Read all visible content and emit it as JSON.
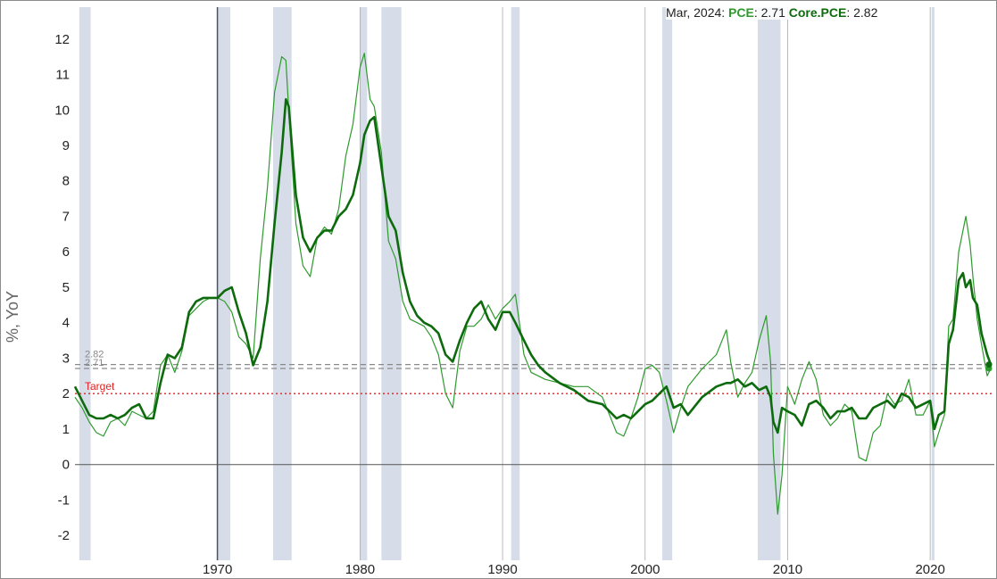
{
  "legend": {
    "date": "Mar, 2024",
    "pce_label": "PCE",
    "pce_value": "2.71",
    "core_label": "Core.PCE",
    "core_value": "2.82"
  },
  "target_label": "Target",
  "ref_label_top": "2.82",
  "ref_label_bottom": "2.71",
  "colors": {
    "pce": "#2e9a2e",
    "core": "#0d6b0d",
    "recession": "#d6dde8",
    "target": "#e02020",
    "ref_line": "#8a8a8a",
    "zero_line": "#555555"
  },
  "chart_data": {
    "type": "line",
    "title": "",
    "xlabel": "",
    "ylabel": "%, YoY",
    "xlim": [
      1960.0,
      2024.5
    ],
    "ylim": [
      -2.7,
      12.9
    ],
    "yticks": [
      -2,
      -1,
      0,
      1,
      2,
      3,
      4,
      5,
      6,
      7,
      8,
      9,
      10,
      11,
      12
    ],
    "xticks": [
      1970,
      1980,
      1990,
      2000,
      2010,
      2020
    ],
    "grid": "vertical decade lines",
    "target": 2,
    "reference_lines": [
      2.82,
      2.71
    ],
    "recessions": [
      [
        1960.3,
        1961.1
      ],
      [
        1969.9,
        1970.9
      ],
      [
        1973.9,
        1975.2
      ],
      [
        1980.0,
        1980.5
      ],
      [
        1981.5,
        1982.9
      ],
      [
        1990.6,
        1991.2
      ],
      [
        2001.2,
        2001.9
      ],
      [
        2007.9,
        2009.5
      ],
      [
        2020.1,
        2020.3
      ]
    ],
    "series": [
      {
        "name": "PCE",
        "x": [
          1960.0,
          1960.5,
          1961.0,
          1961.5,
          1962.0,
          1962.5,
          1963.0,
          1963.5,
          1964.0,
          1964.5,
          1965.0,
          1965.5,
          1966.0,
          1966.5,
          1967.0,
          1967.5,
          1968.0,
          1968.5,
          1969.0,
          1969.5,
          1970.0,
          1970.5,
          1971.0,
          1971.5,
          1972.0,
          1972.5,
          1973.0,
          1973.5,
          1974.0,
          1974.5,
          1974.8,
          1975.0,
          1975.5,
          1976.0,
          1976.5,
          1977.0,
          1977.5,
          1978.0,
          1978.5,
          1979.0,
          1979.5,
          1980.0,
          1980.3,
          1980.7,
          1981.0,
          1981.5,
          1982.0,
          1982.5,
          1983.0,
          1983.5,
          1984.0,
          1984.5,
          1985.0,
          1985.5,
          1986.0,
          1986.5,
          1987.0,
          1987.5,
          1988.0,
          1988.5,
          1989.0,
          1989.5,
          1990.0,
          1990.5,
          1990.9,
          1991.5,
          1992.0,
          1992.5,
          1993.0,
          1994.0,
          1995.0,
          1996.0,
          1997.0,
          1998.0,
          1998.5,
          1999.0,
          1999.5,
          2000.0,
          2000.5,
          2001.0,
          2001.5,
          2002.0,
          2002.5,
          2003.0,
          2004.0,
          2005.0,
          2005.7,
          2006.0,
          2006.5,
          2007.0,
          2007.5,
          2008.0,
          2008.5,
          2008.8,
          2009.0,
          2009.3,
          2009.6,
          2010.0,
          2010.5,
          2011.0,
          2011.5,
          2012.0,
          2012.5,
          2013.0,
          2013.5,
          2014.0,
          2014.5,
          2015.0,
          2015.5,
          2016.0,
          2016.5,
          2017.0,
          2017.5,
          2018.0,
          2018.5,
          2019.0,
          2019.5,
          2020.0,
          2020.3,
          2020.6,
          2021.0,
          2021.3,
          2021.6,
          2022.0,
          2022.3,
          2022.5,
          2022.8,
          2023.0,
          2023.3,
          2023.6,
          2024.0,
          2024.25
        ],
        "values": [
          1.9,
          1.6,
          1.2,
          0.9,
          0.8,
          1.2,
          1.3,
          1.1,
          1.5,
          1.4,
          1.3,
          1.5,
          2.8,
          3.1,
          2.6,
          3.2,
          4.2,
          4.4,
          4.6,
          4.7,
          4.7,
          4.6,
          4.3,
          3.6,
          3.4,
          3.0,
          5.8,
          7.8,
          10.5,
          11.5,
          11.4,
          10.0,
          6.8,
          5.6,
          5.3,
          6.4,
          6.7,
          6.5,
          7.2,
          8.7,
          9.6,
          11.2,
          11.6,
          10.3,
          10.1,
          8.8,
          6.3,
          5.8,
          4.6,
          4.1,
          4.0,
          3.9,
          3.6,
          3.1,
          2.0,
          1.6,
          3.2,
          3.9,
          3.9,
          4.1,
          4.5,
          4.1,
          4.4,
          4.6,
          4.8,
          3.1,
          2.6,
          2.5,
          2.4,
          2.3,
          2.2,
          2.2,
          1.9,
          0.9,
          0.8,
          1.3,
          1.9,
          2.7,
          2.8,
          2.6,
          1.8,
          0.9,
          1.6,
          2.2,
          2.7,
          3.1,
          3.8,
          2.9,
          1.9,
          2.3,
          2.6,
          3.5,
          4.2,
          2.9,
          0.3,
          -1.4,
          -0.3,
          2.2,
          1.7,
          2.4,
          2.9,
          2.4,
          1.4,
          1.1,
          1.3,
          1.7,
          1.5,
          0.2,
          0.1,
          0.9,
          1.1,
          2.0,
          1.7,
          1.8,
          2.4,
          1.4,
          1.4,
          1.8,
          0.5,
          0.9,
          1.4,
          3.9,
          4.1,
          6.0,
          6.6,
          7.0,
          6.2,
          5.3,
          4.1,
          3.4,
          2.5,
          2.71
        ]
      },
      {
        "name": "Core.PCE",
        "x": [
          1960.0,
          1960.5,
          1961.0,
          1961.5,
          1962.0,
          1962.5,
          1963.0,
          1963.5,
          1964.0,
          1964.5,
          1965.0,
          1965.5,
          1966.0,
          1966.5,
          1967.0,
          1967.5,
          1968.0,
          1968.5,
          1969.0,
          1969.5,
          1970.0,
          1970.5,
          1971.0,
          1971.5,
          1972.0,
          1972.5,
          1973.0,
          1973.5,
          1974.0,
          1974.5,
          1974.8,
          1975.0,
          1975.5,
          1976.0,
          1976.5,
          1977.0,
          1977.5,
          1978.0,
          1978.5,
          1979.0,
          1979.5,
          1980.0,
          1980.3,
          1980.7,
          1981.0,
          1981.5,
          1982.0,
          1982.5,
          1983.0,
          1983.5,
          1984.0,
          1984.5,
          1985.0,
          1985.5,
          1986.0,
          1986.5,
          1987.0,
          1987.5,
          1988.0,
          1988.5,
          1989.0,
          1989.5,
          1990.0,
          1990.5,
          1990.9,
          1991.5,
          1992.0,
          1992.5,
          1993.0,
          1994.0,
          1995.0,
          1996.0,
          1997.0,
          1998.0,
          1998.5,
          1999.0,
          1999.5,
          2000.0,
          2000.5,
          2001.0,
          2001.5,
          2002.0,
          2002.5,
          2003.0,
          2004.0,
          2005.0,
          2005.7,
          2006.0,
          2006.5,
          2007.0,
          2007.5,
          2008.0,
          2008.5,
          2008.8,
          2009.0,
          2009.3,
          2009.6,
          2010.0,
          2010.5,
          2011.0,
          2011.5,
          2012.0,
          2012.5,
          2013.0,
          2013.5,
          2014.0,
          2014.5,
          2015.0,
          2015.5,
          2016.0,
          2016.5,
          2017.0,
          2017.5,
          2018.0,
          2018.5,
          2019.0,
          2019.5,
          2020.0,
          2020.3,
          2020.6,
          2021.0,
          2021.3,
          2021.6,
          2022.0,
          2022.3,
          2022.5,
          2022.8,
          2023.0,
          2023.3,
          2023.6,
          2024.0,
          2024.25
        ],
        "values": [
          2.2,
          1.8,
          1.4,
          1.3,
          1.3,
          1.4,
          1.3,
          1.4,
          1.6,
          1.7,
          1.3,
          1.3,
          2.3,
          3.1,
          3.0,
          3.3,
          4.3,
          4.6,
          4.7,
          4.7,
          4.7,
          4.9,
          5.0,
          4.3,
          3.7,
          2.8,
          3.3,
          4.6,
          6.8,
          8.8,
          10.3,
          10.1,
          7.6,
          6.4,
          6.0,
          6.4,
          6.6,
          6.6,
          7.0,
          7.2,
          7.6,
          8.5,
          9.3,
          9.7,
          9.8,
          8.4,
          7.0,
          6.6,
          5.4,
          4.6,
          4.2,
          4.0,
          3.9,
          3.7,
          3.1,
          2.9,
          3.5,
          4.0,
          4.4,
          4.6,
          4.1,
          3.8,
          4.3,
          4.3,
          4.0,
          3.5,
          3.1,
          2.8,
          2.6,
          2.3,
          2.1,
          1.8,
          1.7,
          1.3,
          1.4,
          1.3,
          1.5,
          1.7,
          1.8,
          2.0,
          2.2,
          1.6,
          1.7,
          1.4,
          1.9,
          2.2,
          2.3,
          2.3,
          2.4,
          2.2,
          2.3,
          2.1,
          2.2,
          1.9,
          1.2,
          0.9,
          1.6,
          1.5,
          1.4,
          1.1,
          1.7,
          1.8,
          1.6,
          1.3,
          1.5,
          1.5,
          1.6,
          1.3,
          1.3,
          1.6,
          1.7,
          1.8,
          1.6,
          2.0,
          1.9,
          1.6,
          1.7,
          1.8,
          1.0,
          1.4,
          1.5,
          3.4,
          3.8,
          5.2,
          5.4,
          5.0,
          5.2,
          4.7,
          4.5,
          3.7,
          3.1,
          2.82
        ]
      }
    ]
  }
}
